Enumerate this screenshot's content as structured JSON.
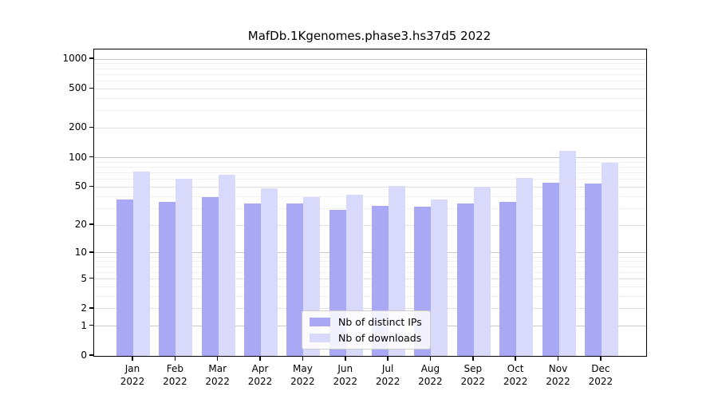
{
  "title": "MafDb.1Kgenomes.phase3.hs37d5 2022",
  "chart_data": {
    "type": "bar",
    "title": "MafDb.1Kgenomes.phase3.hs37d5 2022",
    "categories": [
      "Jan",
      "Feb",
      "Mar",
      "Apr",
      "May",
      "Jun",
      "Jul",
      "Aug",
      "Sep",
      "Oct",
      "Nov",
      "Dec"
    ],
    "category_year": "2022",
    "series": [
      {
        "name": "Nb of distinct IPs",
        "color": "#a8a8f5",
        "values": [
          37,
          35,
          39,
          34,
          34,
          29,
          32,
          31,
          34,
          35,
          55,
          54
        ]
      },
      {
        "name": "Nb of downloads",
        "color": "#d9d9fb",
        "values": [
          72,
          61,
          67,
          48,
          39,
          42,
          51,
          37,
          50,
          62,
          117,
          88
        ]
      }
    ],
    "yscale": "log1p",
    "yticks": [
      1000,
      500,
      200,
      100,
      50,
      20,
      10,
      5,
      2,
      1,
      0
    ],
    "ylim": [
      0,
      1250
    ],
    "grid": true,
    "legend_position": "lower center",
    "colors": {
      "grid_decade": "#c9c9c9",
      "grid_labeled": "#e2e2e2",
      "grid_minor": "#f1f1f1",
      "axis": "#000000"
    }
  }
}
